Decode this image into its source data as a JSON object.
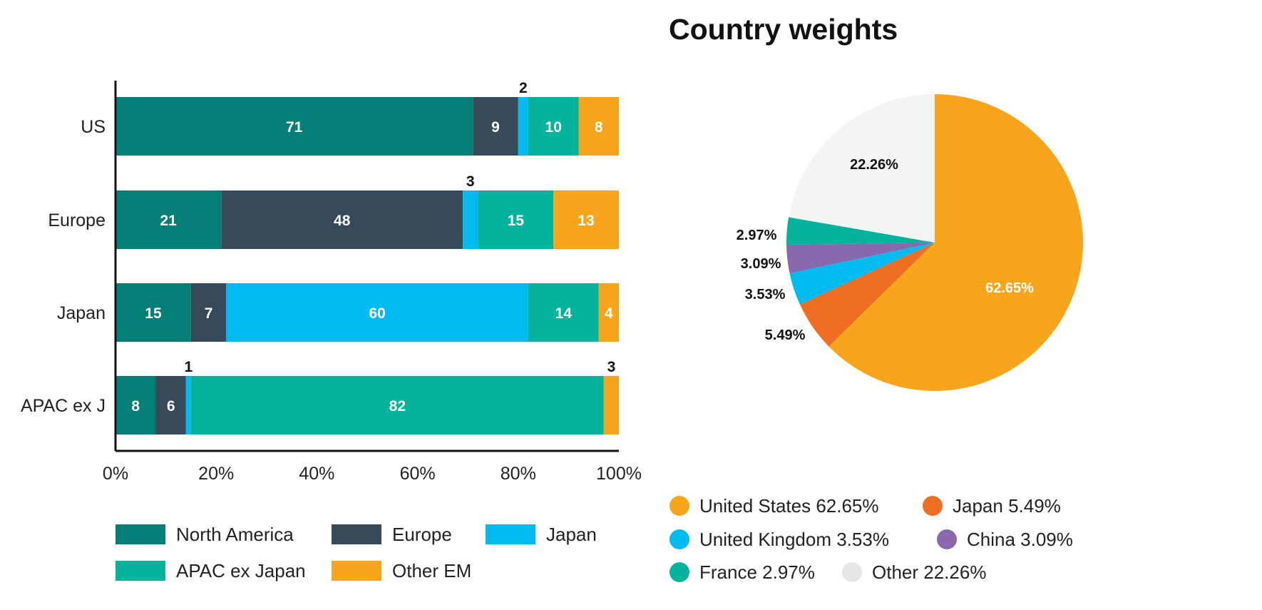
{
  "chart_data": [
    {
      "type": "bar",
      "orientation": "horizontal",
      "stacked": true,
      "categories": [
        "US",
        "Europe",
        "Japan",
        "APAC ex J"
      ],
      "xlim": [
        0,
        100
      ],
      "xticks": [
        "0%",
        "20%",
        "40%",
        "60%",
        "80%",
        "100%"
      ],
      "series": [
        {
          "name": "North America",
          "color": "#037f78",
          "values": [
            71,
            21,
            15,
            8
          ]
        },
        {
          "name": "Europe",
          "color": "#374a5a",
          "values": [
            9,
            48,
            7,
            6
          ]
        },
        {
          "name": "Japan",
          "color": "#00bbf0",
          "values": [
            2,
            3,
            60,
            1
          ]
        },
        {
          "name": "APAC ex Japan",
          "color": "#05b39d",
          "values": [
            10,
            15,
            14,
            82
          ]
        },
        {
          "name": "Other EM",
          "color": "#f8a51b",
          "values": [
            8,
            13,
            4,
            3
          ]
        }
      ],
      "legend": "bottom"
    },
    {
      "type": "pie",
      "title": "Country weights",
      "slices": [
        {
          "name": "United States",
          "value": 62.65,
          "label": "62.65%",
          "legend": "United States 62.65%",
          "color": "#f8a51b",
          "legend_color": "#f8a51b"
        },
        {
          "name": "Japan",
          "value": 5.49,
          "label": "5.49%",
          "legend": "Japan 5.49%",
          "color": "#f06e24",
          "legend_color": "#f06e24"
        },
        {
          "name": "United Kingdom",
          "value": 3.53,
          "label": "3.53%",
          "legend": "United Kingdom 3.53%",
          "color": "#00bbf0",
          "legend_color": "#00bbf0"
        },
        {
          "name": "China",
          "value": 3.09,
          "label": "3.09%",
          "legend": "China 3.09%",
          "color": "#8a68ad",
          "legend_color": "#8a68ad"
        },
        {
          "name": "France",
          "value": 2.97,
          "label": "2.97%",
          "legend": "France 2.97%",
          "color": "#05b39d",
          "legend_color": "#05b39d"
        },
        {
          "name": "Other",
          "value": 22.26,
          "label": "22.26%",
          "legend": "Other 22.26%",
          "color": "#f4f4f4",
          "legend_color": "#e6e6e6"
        }
      ],
      "legend": "bottom"
    }
  ]
}
